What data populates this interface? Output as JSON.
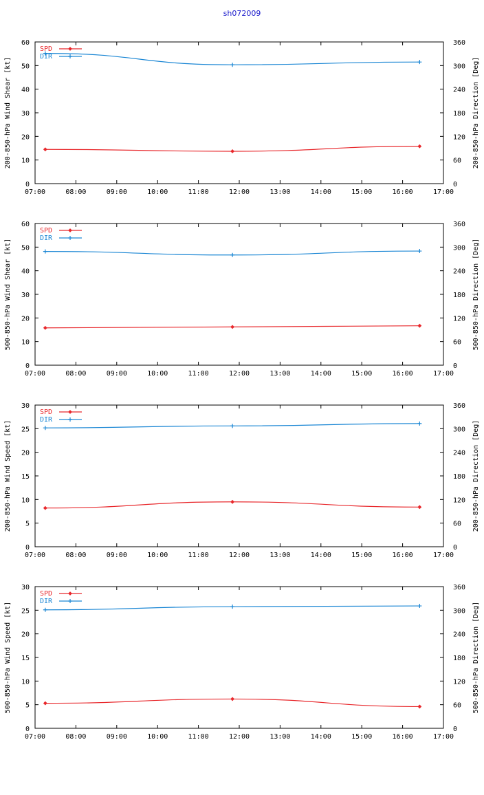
{
  "page": {
    "title": "sh072009",
    "colors": {
      "spd": "#e8282c",
      "dir": "#1a86d4",
      "axis": "#000000",
      "title": "#1a1acc"
    }
  },
  "chart_data": [
    {
      "type": "line",
      "xlabel": "",
      "ylabel": "200-850-hPa Wind Shear [kt]",
      "y2label": "200-850-hPa Direction [Deg]",
      "xlim": [
        "07:00",
        "17:00"
      ],
      "xticks": [
        "07:00",
        "08:00",
        "09:00",
        "10:00",
        "11:00",
        "12:00",
        "13:00",
        "14:00",
        "15:00",
        "16:00",
        "17:00"
      ],
      "ylim": [
        0,
        60
      ],
      "yticks": [
        "0",
        "10",
        "20",
        "30",
        "40",
        "50",
        "60"
      ],
      "y2lim": [
        0,
        360
      ],
      "y2ticks": [
        "0",
        "60",
        "120",
        "180",
        "240",
        "300",
        "360"
      ],
      "x": [
        "07:15",
        "11:50",
        "16:25"
      ],
      "legend_position": "top-left",
      "grid": false,
      "series": [
        {
          "name": "SPD",
          "axis": "left",
          "values": [
            14.5,
            13.7,
            15.8
          ]
        },
        {
          "name": "DIR",
          "axis": "right",
          "values": [
            331,
            302,
            309
          ]
        }
      ]
    },
    {
      "type": "line",
      "xlabel": "",
      "ylabel": "500-850-hPa Wind Shear [kt]",
      "y2label": "500-850-hPa Direction [Deg]",
      "xlim": [
        "07:00",
        "17:00"
      ],
      "xticks": [
        "07:00",
        "08:00",
        "09:00",
        "10:00",
        "11:00",
        "12:00",
        "13:00",
        "14:00",
        "15:00",
        "16:00",
        "17:00"
      ],
      "ylim": [
        0,
        60
      ],
      "yticks": [
        "0",
        "10",
        "20",
        "30",
        "40",
        "50",
        "60"
      ],
      "y2lim": [
        0,
        360
      ],
      "y2ticks": [
        "0",
        "60",
        "120",
        "180",
        "240",
        "300",
        "360"
      ],
      "x": [
        "07:15",
        "11:50",
        "16:25"
      ],
      "legend_position": "top-left",
      "grid": false,
      "series": [
        {
          "name": "SPD",
          "axis": "left",
          "values": [
            15.8,
            16.2,
            16.7
          ]
        },
        {
          "name": "DIR",
          "axis": "right",
          "values": [
            289,
            280,
            290
          ]
        }
      ]
    },
    {
      "type": "line",
      "xlabel": "",
      "ylabel": "200-850-hPa Wind Speed [kt]",
      "y2label": "200-850-hPa Direction [Deg]",
      "xlim": [
        "07:00",
        "17:00"
      ],
      "xticks": [
        "07:00",
        "08:00",
        "09:00",
        "10:00",
        "11:00",
        "12:00",
        "13:00",
        "14:00",
        "15:00",
        "16:00",
        "17:00"
      ],
      "ylim": [
        0,
        30
      ],
      "yticks": [
        "0",
        "5",
        "10",
        "15",
        "20",
        "25",
        "30"
      ],
      "y2lim": [
        0,
        360
      ],
      "y2ticks": [
        "0",
        "60",
        "120",
        "180",
        "240",
        "300",
        "360"
      ],
      "x": [
        "07:15",
        "11:50",
        "16:25"
      ],
      "legend_position": "top-left",
      "grid": false,
      "series": [
        {
          "name": "SPD",
          "axis": "left",
          "values": [
            8.2,
            9.5,
            8.4
          ]
        },
        {
          "name": "DIR",
          "axis": "right",
          "values": [
            302,
            307,
            313
          ]
        }
      ]
    },
    {
      "type": "line",
      "xlabel": "",
      "ylabel": "500-850-hPa Wind Speed [kt]",
      "y2label": "500-850-hPa Direction [Deg]",
      "xlim": [
        "07:00",
        "17:00"
      ],
      "xticks": [
        "07:00",
        "08:00",
        "09:00",
        "10:00",
        "11:00",
        "12:00",
        "13:00",
        "14:00",
        "15:00",
        "16:00",
        "17:00"
      ],
      "ylim": [
        0,
        30
      ],
      "yticks": [
        "0",
        "5",
        "10",
        "15",
        "20",
        "25",
        "30"
      ],
      "y2lim": [
        0,
        360
      ],
      "y2ticks": [
        "0",
        "60",
        "120",
        "180",
        "240",
        "300",
        "360"
      ],
      "x": [
        "07:15",
        "11:50",
        "16:25"
      ],
      "legend_position": "top-left",
      "grid": false,
      "series": [
        {
          "name": "SPD",
          "axis": "left",
          "values": [
            5.3,
            6.2,
            4.6
          ]
        },
        {
          "name": "DIR",
          "axis": "right",
          "values": [
            301,
            309,
            311
          ]
        }
      ]
    }
  ]
}
